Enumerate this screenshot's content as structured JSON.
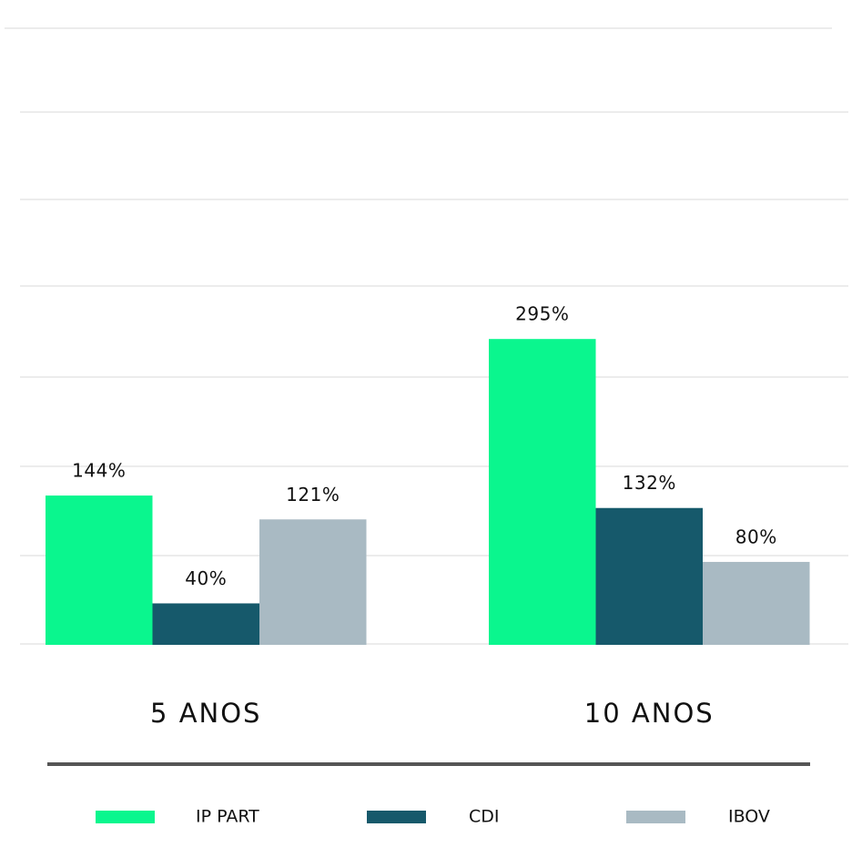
{
  "chart_data": {
    "type": "bar",
    "categories": [
      "5 ANOS",
      "10 ANOS"
    ],
    "series": [
      {
        "name": "IP PART",
        "color": "#0af68e",
        "values": [
          144,
          295
        ],
        "value_labels": [
          "144%",
          "295%"
        ]
      },
      {
        "name": "CDI",
        "color": "#16596b",
        "values": [
          40,
          132
        ],
        "value_labels": [
          "40%",
          "132%"
        ]
      },
      {
        "name": "IBOV",
        "color": "#a9bac3",
        "values": [
          121,
          80
        ],
        "value_labels": [
          "121%",
          "80%"
        ]
      }
    ],
    "ylim": [
      0,
      600
    ]
  }
}
